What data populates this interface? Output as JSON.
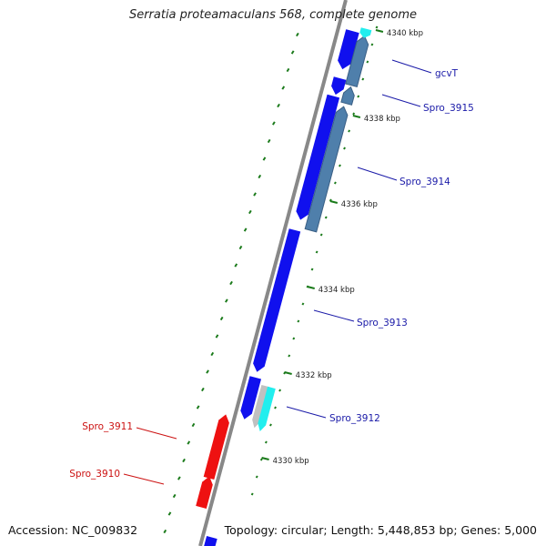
{
  "title": "Serratia proteamaculans 568, complete genome",
  "footer": {
    "accession": "Accession: NC_009832",
    "topology": "Topology: circular; Length: 5,448,853 bp; Genes: 5,000"
  },
  "colors": {
    "forward_cds": "#1010ee",
    "reverse_cds": "#4f7fab",
    "red_gene": "#ee1111",
    "cyan_gene": "#22eeee",
    "grey_gene": "#c0c0c0",
    "backbone": "#888888",
    "tick": "#1a7a1a",
    "forward_label": "#1a1aa8",
    "reverse_label": "#cc1111"
  },
  "ticks": [
    {
      "label": "4340 kbp"
    },
    {
      "label": "4338 kbp"
    },
    {
      "label": "4336 kbp"
    },
    {
      "label": "4334 kbp"
    },
    {
      "label": "4332 kbp"
    },
    {
      "label": "4330 kbp"
    }
  ],
  "genes": [
    {
      "label": "gcvT"
    },
    {
      "label": "Spro_3915"
    },
    {
      "label": "Spro_3914"
    },
    {
      "label": "Spro_3913"
    },
    {
      "label": "Spro_3912"
    },
    {
      "label": "Spro_3911"
    },
    {
      "label": "Spro_3910"
    }
  ]
}
